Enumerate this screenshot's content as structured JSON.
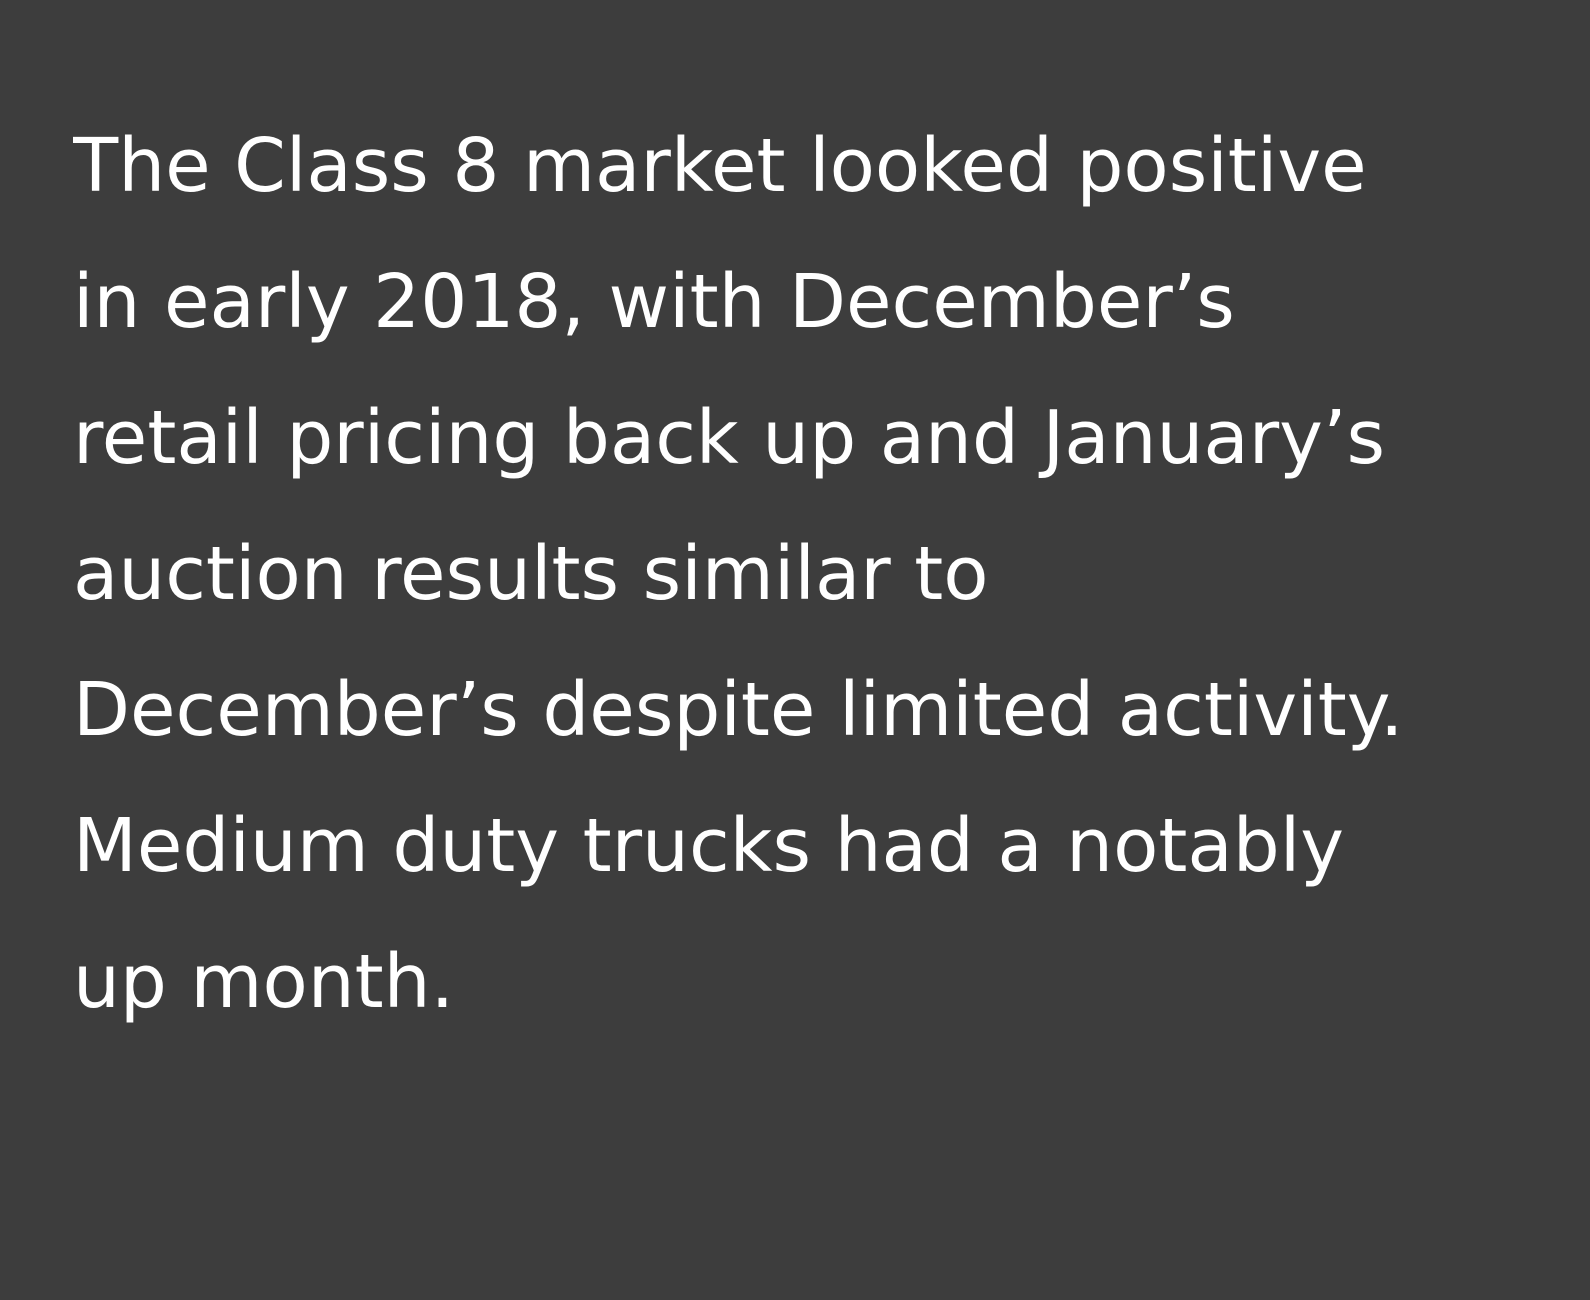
{
  "paragraph": {
    "lines": [
      "The Class 8 market looked positive",
      "in early 2018, with December’s",
      "retail pricing back up and January’s",
      "auction results similar to",
      "December’s despite limited activity.",
      "Medium duty trucks had a notably",
      "up month."
    ]
  }
}
